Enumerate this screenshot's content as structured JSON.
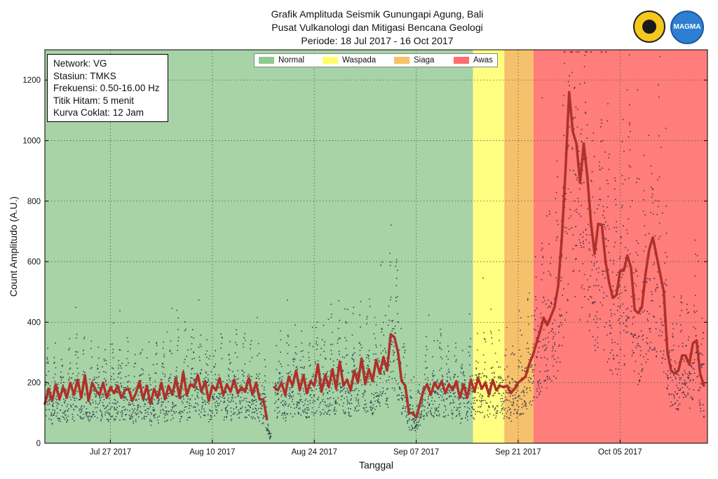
{
  "header": {
    "title_line1": "Grafik Amplituda Seismik Gunungapi Agung, Bali",
    "title_line2": "Pusat Vulkanologi dan Mitigasi Bencana Geologi",
    "title_line3": "Periode: 18 Jul 2017 - 16 Oct 2017"
  },
  "logos": {
    "magma_text": "MAGMA"
  },
  "info_box": {
    "network": "Network: VG",
    "station": "Stasiun: TMKS",
    "frequency": "Frekuensi: 0.50-16.00 Hz",
    "black_points": "Titik Hitam: 5 menit",
    "brown_curve": "Kurva Coklat: 12 Jam"
  },
  "legend": {
    "items": [
      {
        "label": "Normal",
        "color": "#8fcb8f"
      },
      {
        "label": "Waspada",
        "color": "#ffff66"
      },
      {
        "label": "Siaga",
        "color": "#f7c168"
      },
      {
        "label": "Awas",
        "color": "#ff6e6e"
      }
    ]
  },
  "colors": {
    "normal_bg": "#a7d3a6",
    "waspada_bg": "#fffe80",
    "siaga_bg": "#f6c16b",
    "awas_bg": "#ff7e7b",
    "points": "#0c1a3a",
    "curve": "#b0302a"
  },
  "chart_data": {
    "type": "scatter",
    "title": "Grafik Amplituda Seismik Gunungapi Agung, Bali",
    "xlabel": "Tanggal",
    "ylabel": "Count Amplitudo (A.U.)",
    "xlim_day_offset": [
      0,
      91
    ],
    "x_origin": "2017-07-18",
    "ylim": [
      0,
      1300
    ],
    "yticks": [
      0,
      200,
      400,
      600,
      800,
      1000,
      1200
    ],
    "xticks": [
      {
        "day": 9,
        "label": "Jul 27 2017"
      },
      {
        "day": 23,
        "label": "Aug 10 2017"
      },
      {
        "day": 37,
        "label": "Aug 24 2017"
      },
      {
        "day": 51,
        "label": "Sep 07 2017"
      },
      {
        "day": 65,
        "label": "Sep 21 2017"
      },
      {
        "day": 79,
        "label": "Oct 05 2017"
      }
    ],
    "grid": true,
    "status_periods": [
      {
        "status": "Normal",
        "start_day": 0,
        "end_day": 58.8
      },
      {
        "status": "Waspada",
        "start_day": 58.8,
        "end_day": 63.1
      },
      {
        "status": "Siaga",
        "start_day": 63.1,
        "end_day": 67.1
      },
      {
        "status": "Awas",
        "start_day": 67.1,
        "end_day": 91
      }
    ],
    "series": [
      {
        "name": "Kurva Coklat (12 Jam)",
        "x": [
          0,
          0.5,
          1,
          1.5,
          2,
          2.5,
          3,
          3.5,
          4,
          4.5,
          5,
          5.5,
          6,
          6.5,
          7,
          7.5,
          8,
          8.5,
          9,
          9.5,
          10,
          10.5,
          11,
          11.5,
          12,
          12.5,
          13,
          13.5,
          14,
          14.5,
          15,
          15.5,
          16,
          16.5,
          17,
          17.5,
          18,
          18.5,
          19,
          19.5,
          20,
          20.5,
          21,
          21.5,
          22,
          22.5,
          23,
          23.5,
          24,
          24.5,
          25,
          25.5,
          26,
          26.5,
          27,
          27.5,
          28,
          28.5,
          29,
          29.5,
          30,
          30.5,
          31,
          null,
          31.5,
          32,
          32.5,
          33,
          33.5,
          34,
          34.5,
          35,
          35.5,
          36,
          36.5,
          37,
          37.5,
          38,
          38.5,
          39,
          39.5,
          40,
          40.5,
          41,
          41.5,
          42,
          42.5,
          43,
          43.5,
          44,
          44.5,
          45,
          45.5,
          46,
          46.5,
          47,
          47.5,
          48,
          48.5,
          49,
          49.5,
          50,
          50.5,
          51,
          51.5,
          52,
          52.5,
          53,
          53.5,
          54,
          54.5,
          55,
          55.5,
          56,
          56.5,
          57,
          57.5,
          58,
          58.5,
          59,
          59.5,
          60,
          60.5,
          61,
          61.5,
          62,
          62.5,
          63,
          63.5,
          64,
          64.5,
          65,
          65.5,
          66,
          66.5,
          67,
          67.5,
          68,
          68.5,
          69,
          69.5,
          70,
          70.5,
          71,
          71.5,
          72,
          72.5,
          73,
          73.5,
          74,
          74.5,
          75,
          75.5,
          76,
          76.5,
          77,
          77.5,
          78,
          78.5,
          79,
          79.5,
          80,
          80.5,
          81,
          81.5,
          82,
          82.5,
          83,
          83.5,
          84,
          84.5,
          85,
          85.5,
          86,
          86.5,
          87,
          87.5,
          88,
          88.5,
          89,
          89.5,
          90,
          90.5
        ],
        "values": [
          130,
          180,
          140,
          195,
          145,
          185,
          150,
          200,
          160,
          210,
          150,
          225,
          140,
          200,
          175,
          160,
          200,
          150,
          185,
          165,
          190,
          150,
          175,
          180,
          140,
          165,
          205,
          145,
          190,
          130,
          180,
          150,
          200,
          145,
          190,
          160,
          215,
          150,
          235,
          160,
          195,
          185,
          225,
          170,
          205,
          140,
          190,
          175,
          215,
          160,
          195,
          170,
          210,
          165,
          185,
          170,
          215,
          160,
          200,
          145,
          145,
          80,
          null,
          145,
          185,
          175,
          200,
          160,
          220,
          190,
          240,
          175,
          225,
          165,
          205,
          190,
          260,
          170,
          225,
          185,
          245,
          180,
          270,
          190,
          210,
          175,
          240,
          200,
          280,
          195,
          245,
          205,
          275,
          230,
          285,
          240,
          360,
          350,
          300,
          205,
          190,
          100,
          100,
          85,
          130,
          175,
          195,
          160,
          200,
          180,
          205,
          165,
          195,
          175,
          205,
          150,
          195,
          150,
          210,
          170,
          215,
          180,
          200,
          160,
          210,
          175,
          190,
          185,
          190,
          165,
          180,
          200,
          210,
          220,
          260,
          290,
          330,
          370,
          415,
          390,
          420,
          450,
          520,
          680,
          900,
          1160,
          1030,
          990,
          860,
          990,
          880,
          730,
          625,
          725,
          720,
          600,
          530,
          480,
          490,
          570,
          570,
          620,
          580,
          440,
          430,
          450,
          560,
          640,
          680,
          620,
          560,
          500,
          300,
          240,
          230,
          240,
          290,
          290,
          260,
          330,
          340,
          230,
          190
        ]
      }
    ],
    "annotations": [
      "Network: VG",
      "Stasiun: TMKS",
      "Frekuensi: 0.50-16.00 Hz",
      "Titik Hitam: 5 menit",
      "Kurva Coklat: 12 Jam"
    ]
  }
}
